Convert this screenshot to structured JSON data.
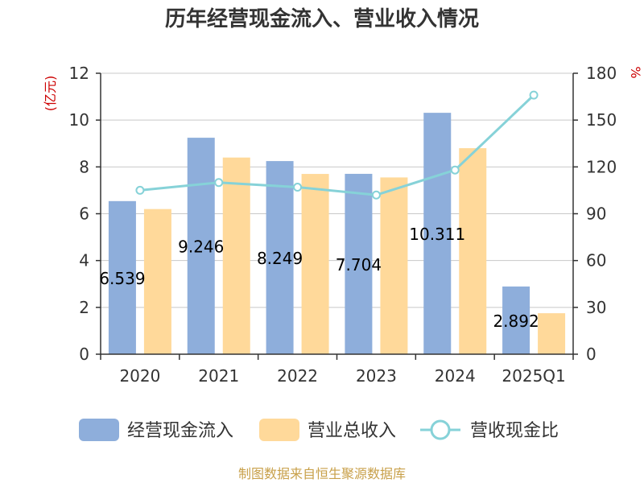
{
  "chart_data": {
    "type": "bar",
    "title": "历年经营现金流入、营业收入情况",
    "categories": [
      "2020",
      "2021",
      "2022",
      "2023",
      "2024",
      "2025Q1"
    ],
    "y_left": {
      "unit_label": "(亿元)",
      "min": 0,
      "max": 12,
      "ticks": [
        0,
        2,
        4,
        6,
        8,
        10,
        12
      ]
    },
    "y_right": {
      "unit_label": "%",
      "min": 0,
      "max": 180,
      "ticks": [
        0,
        30,
        60,
        90,
        120,
        150,
        180
      ]
    },
    "series": [
      {
        "name": "经营现金流入",
        "kind": "bar",
        "axis": "left",
        "color": "#8eaedb",
        "values": [
          6.539,
          9.246,
          8.249,
          7.704,
          10.311,
          2.892
        ],
        "labels": [
          "6.539",
          "9.246",
          "8.249",
          "7.704",
          "10.311",
          "2.892"
        ]
      },
      {
        "name": "营业总收入",
        "kind": "bar",
        "axis": "left",
        "color": "#ffd99a",
        "values": [
          6.2,
          8.4,
          7.7,
          7.55,
          8.8,
          1.75
        ]
      },
      {
        "name": "营收现金比",
        "kind": "line",
        "axis": "right",
        "color": "#86d2d8",
        "values": [
          105,
          110,
          107,
          102,
          118,
          166
        ]
      }
    ],
    "grid": true,
    "legend_position": "bottom",
    "source": "制图数据来自恒生聚源数据库"
  }
}
